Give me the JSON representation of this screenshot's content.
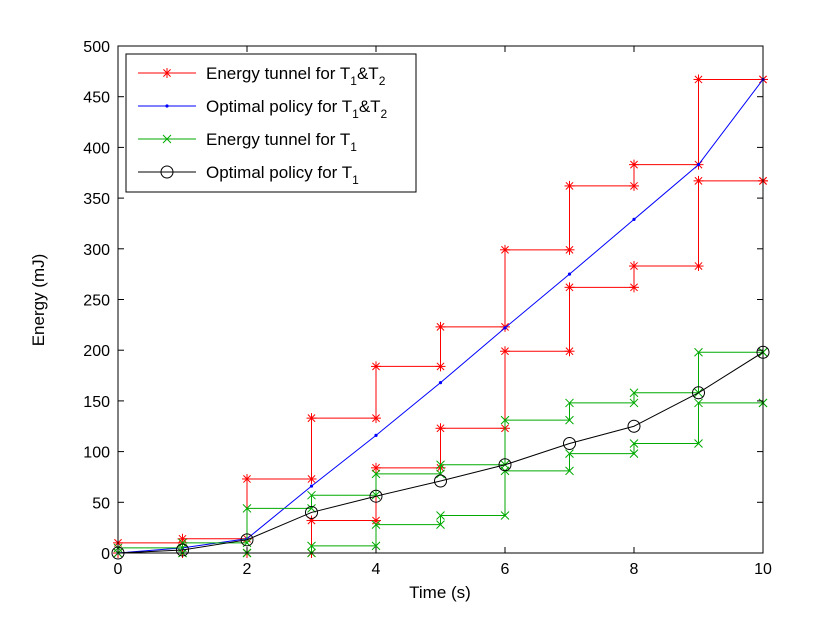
{
  "chart_data": {
    "type": "line",
    "xlabel": "Time (s)",
    "ylabel": "Energy (mJ)",
    "xlim": [
      0,
      10
    ],
    "ylim": [
      0,
      500
    ],
    "xticks": [
      "0",
      "2",
      "4",
      "6",
      "8",
      "10"
    ],
    "yticks": [
      "0",
      "50",
      "100",
      "150",
      "200",
      "250",
      "300",
      "350",
      "400",
      "450",
      "500"
    ],
    "grid": false,
    "legend_position": "top-left",
    "legend": [
      {
        "text": "Energy tunnel for T",
        "sub1": "1",
        "mid": "&T",
        "sub2": "2",
        "color": "#ff0000",
        "marker": "asterisk"
      },
      {
        "text": "Optimal policy for T",
        "sub1": "1",
        "mid": "&T",
        "sub2": "2",
        "color": "#0000ff",
        "marker": "dot"
      },
      {
        "text": "Energy tunnel for T",
        "sub1": "1",
        "mid": "",
        "sub2": "",
        "color": "#00aa00",
        "marker": "x"
      },
      {
        "text": "Optimal policy for T",
        "sub1": "1",
        "mid": "",
        "sub2": "",
        "color": "#000000",
        "marker": "circle"
      }
    ],
    "series": [
      {
        "name": "Energy tunnel for T1&T2 (upper)",
        "color": "#ff0000",
        "marker": "asterisk",
        "style": "step",
        "x": [
          0,
          1,
          2,
          3,
          4,
          5,
          6,
          7,
          8,
          9,
          10
        ],
        "y": [
          10,
          14,
          73,
          133,
          184,
          223,
          299,
          362,
          383,
          467,
          467
        ]
      },
      {
        "name": "Energy tunnel for T1&T2 (lower)",
        "color": "#ff0000",
        "marker": "asterisk",
        "style": "step",
        "x": [
          0,
          1,
          2,
          3,
          4,
          5,
          6,
          7,
          8,
          9,
          10
        ],
        "y": [
          0,
          0,
          0,
          32,
          84,
          123,
          199,
          262,
          283,
          367,
          367
        ]
      },
      {
        "name": "Optimal policy for T1&T2",
        "color": "#0000ff",
        "marker": "dot",
        "style": "line",
        "x": [
          0,
          1,
          2,
          3,
          4,
          5,
          6,
          7,
          8,
          9,
          10
        ],
        "y": [
          0,
          5,
          14,
          66,
          116,
          168,
          222,
          275,
          329,
          383,
          467
        ]
      },
      {
        "name": "Energy tunnel for T1 (upper)",
        "color": "#00aa00",
        "marker": "x",
        "style": "step",
        "x": [
          0,
          1,
          2,
          3,
          4,
          5,
          6,
          7,
          8,
          9,
          10
        ],
        "y": [
          5,
          10,
          44,
          57,
          78,
          87,
          131,
          148,
          158,
          198,
          198
        ]
      },
      {
        "name": "Energy tunnel for T1 (lower)",
        "color": "#00aa00",
        "marker": "x",
        "style": "step",
        "x": [
          0,
          1,
          2,
          3,
          4,
          5,
          6,
          7,
          8,
          9,
          10
        ],
        "y": [
          0,
          0,
          0,
          7,
          28,
          37,
          81,
          98,
          108,
          148,
          148
        ]
      },
      {
        "name": "Optimal policy for T1",
        "color": "#000000",
        "marker": "circle",
        "style": "line",
        "x": [
          0,
          1,
          2,
          3,
          4,
          5,
          6,
          7,
          8,
          9,
          10
        ],
        "y": [
          0,
          3,
          13,
          40,
          56,
          71,
          87,
          108,
          125,
          158,
          198
        ]
      }
    ]
  }
}
